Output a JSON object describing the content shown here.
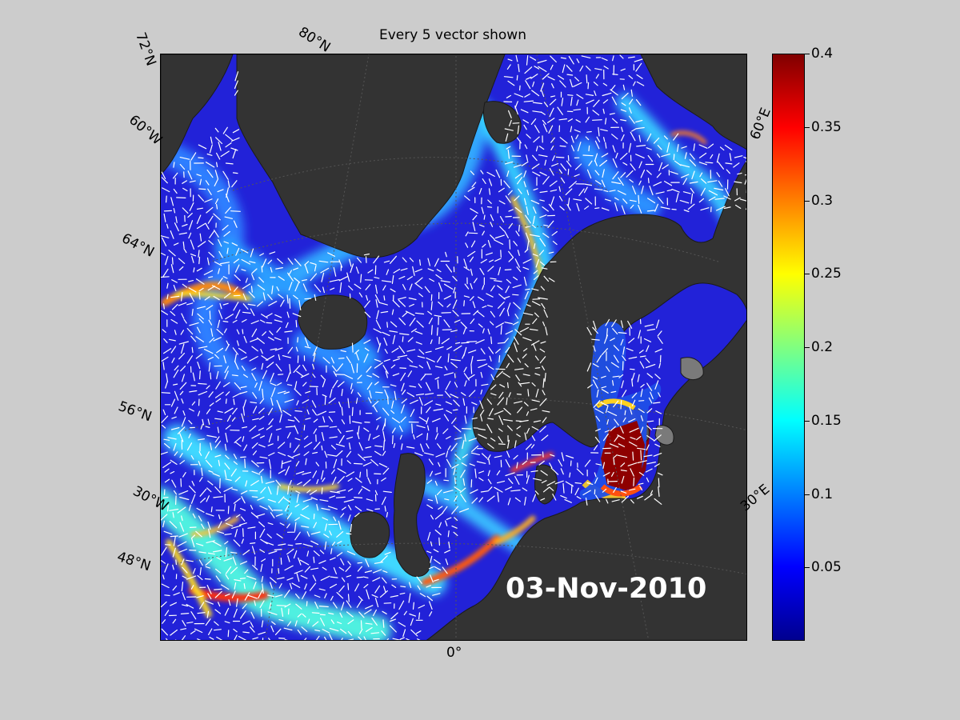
{
  "figure": {
    "title": "Every 5 vector shown",
    "date": "03-Nov-2010"
  },
  "map": {
    "lat_labels": [
      "72°N",
      "60°N",
      "64°N",
      "56°N",
      "48°N"
    ],
    "lon_labels": [
      "80°N",
      "60°W",
      "30°W",
      "0°",
      "30°E",
      "60°E"
    ],
    "colors": {
      "land": "#333333",
      "ocean_base": "#2222d8",
      "vectors": "#ffffff"
    }
  },
  "colorbar": {
    "min": 0,
    "max": 0.4,
    "tick_labels": [
      "0.4",
      "0.35",
      "0.3",
      "0.25",
      "0.2",
      "0.15",
      "0.1",
      "0.05"
    ],
    "tick_values": [
      0.4,
      0.35,
      0.3,
      0.25,
      0.2,
      0.15,
      0.1,
      0.05
    ],
    "colormap": "jet"
  }
}
